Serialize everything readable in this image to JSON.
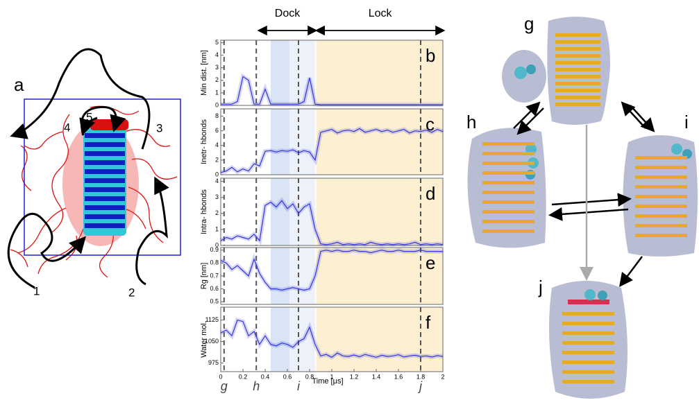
{
  "chart_data": [
    {
      "type": "line",
      "ylabel": "Min dist. [nm]",
      "label": "b",
      "color": "#3434d8",
      "x": [
        0,
        0.05,
        0.1,
        0.15,
        0.2,
        0.25,
        0.3,
        0.35,
        0.4,
        0.45,
        0.5,
        0.55,
        0.6,
        0.65,
        0.7,
        0.75,
        0.8,
        0.85,
        0.9,
        0.95,
        1,
        1.05,
        1.1,
        1.15,
        1.2,
        1.25,
        1.3,
        1.35,
        1.4,
        1.45,
        1.5,
        1.55,
        1.6,
        1.65,
        1.7,
        1.75,
        1.8,
        1.85,
        1.9,
        1.95,
        2
      ],
      "values": [
        0.1,
        0.1,
        0.1,
        0.3,
        2.3,
        2.0,
        0.1,
        0.1,
        1.3,
        0.1,
        0.1,
        0.1,
        0.1,
        0.1,
        0.1,
        0.3,
        2.2,
        0.1,
        0.05,
        0.05,
        0.05,
        0.05,
        0.05,
        0.05,
        0.05,
        0.05,
        0.05,
        0.05,
        0.05,
        0.05,
        0.05,
        0.05,
        0.05,
        0.05,
        0.05,
        0.05,
        0.05,
        0.05,
        0.05,
        0.05,
        0.05
      ],
      "xlim": [
        0,
        2
      ],
      "ylim": [
        0,
        5.2
      ],
      "yticks": [
        0,
        1,
        2,
        3,
        4,
        5
      ]
    },
    {
      "type": "line",
      "ylabel": "Inetr- hbonds",
      "label": "c",
      "color": "#3434d8",
      "x": [
        0,
        0.05,
        0.1,
        0.15,
        0.2,
        0.25,
        0.3,
        0.35,
        0.4,
        0.45,
        0.5,
        0.55,
        0.6,
        0.65,
        0.7,
        0.75,
        0.8,
        0.85,
        0.9,
        0.95,
        1,
        1.05,
        1.1,
        1.15,
        1.2,
        1.25,
        1.3,
        1.35,
        1.4,
        1.45,
        1.5,
        1.55,
        1.6,
        1.65,
        1.7,
        1.75,
        1.8,
        1.85,
        1.9,
        1.95,
        2
      ],
      "values": [
        0.3,
        0.5,
        1,
        0.4,
        0.8,
        0.5,
        1.5,
        1.2,
        3.2,
        3.3,
        3.1,
        3.3,
        3.2,
        3.4,
        3.0,
        3.3,
        3.1,
        2.0,
        5.8,
        6.0,
        6.2,
        5.7,
        6.0,
        6.1,
        5.9,
        6.3,
        5.8,
        6.0,
        6.2,
        5.9,
        6.1,
        5.8,
        6.0,
        6.2,
        5.7,
        6.0,
        5.9,
        6.1,
        5.8,
        6.2,
        5.9
      ],
      "xlim": [
        0,
        2
      ],
      "ylim": [
        0,
        9
      ],
      "yticks": [
        0,
        2,
        4,
        6,
        8
      ]
    },
    {
      "type": "line",
      "ylabel": "Intra- hbonds",
      "label": "d",
      "color": "#3434d8",
      "x": [
        0,
        0.05,
        0.1,
        0.15,
        0.2,
        0.25,
        0.3,
        0.35,
        0.4,
        0.45,
        0.5,
        0.55,
        0.6,
        0.65,
        0.7,
        0.75,
        0.8,
        0.85,
        0.9,
        0.95,
        1,
        1.05,
        1.1,
        1.15,
        1.2,
        1.25,
        1.3,
        1.35,
        1.4,
        1.45,
        1.5,
        1.55,
        1.6,
        1.65,
        1.7,
        1.75,
        1.8,
        1.85,
        1.9,
        1.95,
        2
      ],
      "values": [
        0.3,
        0.5,
        0.4,
        0.6,
        0.5,
        0.4,
        0.7,
        0.3,
        2.5,
        2.7,
        2.4,
        2.8,
        2.3,
        2.6,
        2.0,
        2.4,
        2.6,
        1.0,
        0.1,
        0.05,
        0.1,
        0.2,
        0.05,
        0.1,
        0.05,
        0.1,
        0.05,
        0.2,
        0.1,
        0.05,
        0.1,
        0.05,
        0.1,
        0.05,
        0.1,
        0.2,
        0.05,
        0.1,
        0.05,
        0.1,
        0.05
      ],
      "xlim": [
        0,
        2
      ],
      "ylim": [
        0,
        4.2
      ],
      "yticks": [
        0,
        1,
        2,
        3,
        4
      ]
    },
    {
      "type": "line",
      "ylabel": "Rg [nm]",
      "label": "e",
      "color": "#3434d8",
      "x": [
        0,
        0.05,
        0.1,
        0.15,
        0.2,
        0.25,
        0.3,
        0.35,
        0.4,
        0.45,
        0.5,
        0.55,
        0.6,
        0.65,
        0.7,
        0.75,
        0.8,
        0.85,
        0.9,
        0.95,
        1,
        1.05,
        1.1,
        1.15,
        1.2,
        1.25,
        1.3,
        1.35,
        1.4,
        1.45,
        1.5,
        1.55,
        1.6,
        1.65,
        1.7,
        1.75,
        1.8,
        1.85,
        1.9,
        1.95,
        2
      ],
      "values": [
        0.82,
        0.8,
        0.75,
        0.78,
        0.74,
        0.7,
        0.83,
        0.72,
        0.65,
        0.6,
        0.6,
        0.59,
        0.6,
        0.61,
        0.6,
        0.59,
        0.6,
        0.7,
        0.89,
        0.9,
        0.89,
        0.9,
        0.89,
        0.89,
        0.9,
        0.89,
        0.89,
        0.88,
        0.89,
        0.9,
        0.89,
        0.89,
        0.9,
        0.89,
        0.89,
        0.89,
        0.9,
        0.89,
        0.89,
        0.89,
        0.89
      ],
      "xlim": [
        0,
        2
      ],
      "ylim": [
        0.48,
        0.92
      ],
      "yticks": [
        0.5,
        0.6,
        0.7,
        0.8,
        0.9
      ]
    },
    {
      "type": "line",
      "ylabel": "Water mol.",
      "label": "f",
      "xlabel": "Time [μs]",
      "color": "#3434d8",
      "x": [
        0,
        0.05,
        0.1,
        0.15,
        0.2,
        0.25,
        0.3,
        0.35,
        0.4,
        0.45,
        0.5,
        0.55,
        0.6,
        0.65,
        0.7,
        0.75,
        0.8,
        0.85,
        0.9,
        0.95,
        1,
        1.05,
        1.1,
        1.15,
        1.2,
        1.25,
        1.3,
        1.35,
        1.4,
        1.45,
        1.5,
        1.55,
        1.6,
        1.65,
        1.7,
        1.75,
        1.8,
        1.85,
        1.9,
        1.95,
        2
      ],
      "values": [
        1080,
        1090,
        1070,
        1125,
        1120,
        1070,
        1085,
        1040,
        1070,
        1040,
        1035,
        1045,
        1040,
        1030,
        1050,
        1060,
        1100,
        1040,
        1000,
        1005,
        995,
        1010,
        1000,
        998,
        1003,
        997,
        1005,
        1000,
        995,
        1002,
        998,
        1000,
        1004,
        996,
        1000,
        1002,
        998,
        1000,
        996,
        1001,
        998
      ],
      "xlim": [
        0,
        2
      ],
      "ylim": [
        945,
        1170
      ],
      "yticks": [
        975,
        1050,
        1125
      ],
      "xticks": [
        0,
        0.2,
        0.4,
        0.6,
        0.8,
        1,
        1.2,
        1.4,
        1.6,
        1.8,
        2
      ]
    }
  ],
  "shading": [
    {
      "x0": 0.45,
      "x1": 0.62,
      "color": "#d9e5f4"
    },
    {
      "x0": 0.62,
      "x1": 0.85,
      "color": "#edf2fa"
    },
    {
      "x0": 0.86,
      "x1": 2,
      "color": "#fdf0d2"
    }
  ],
  "time_markers": [
    {
      "x": 0.03,
      "label": "g"
    },
    {
      "x": 0.32,
      "label": "h"
    },
    {
      "x": 0.7,
      "label": "i"
    },
    {
      "x": 1.8,
      "label": "j"
    }
  ],
  "phases": [
    {
      "label": "Dock",
      "x0": 0.35,
      "x1": 0.85
    },
    {
      "label": "Lock",
      "x0": 0.87,
      "x1": 2
    }
  ],
  "panel_a": {
    "label": "a",
    "regions": [
      "1",
      "2",
      "3",
      "4",
      "5"
    ]
  },
  "structures": {
    "g": "g",
    "h": "h",
    "i": "i",
    "j": "j"
  }
}
